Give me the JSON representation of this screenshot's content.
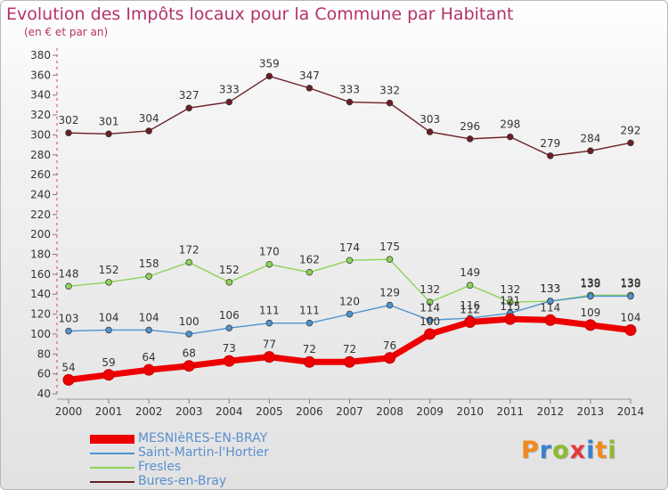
{
  "title": "Evolution des Impôts locaux pour la Commune par Habitant",
  "subtitle": "(en € et par an)",
  "logo": {
    "letters": [
      "P",
      "r",
      "o",
      "x",
      "i",
      "t",
      "i"
    ],
    "colors": [
      "#f08a1c",
      "#3c7fd0",
      "#8cbc2c",
      "#e23a3a",
      "#3c7fd0",
      "#f08a1c",
      "#8cbc2c"
    ]
  },
  "chart_data": {
    "type": "line",
    "title": "Evolution des Impôts locaux pour la Commune par Habitant",
    "ylabel": "(en € et par an)",
    "x": [
      "2000",
      "2001",
      "2002",
      "2003",
      "2004",
      "2005",
      "2006",
      "2007",
      "2008",
      "2009",
      "2010",
      "2011",
      "2012",
      "2013",
      "2014"
    ],
    "ylim": [
      40,
      380
    ],
    "yticks": [
      40,
      60,
      80,
      100,
      120,
      140,
      160,
      180,
      200,
      220,
      240,
      260,
      280,
      300,
      320,
      340,
      360,
      380
    ],
    "grid": false,
    "legend_position": "bottom-left",
    "series": [
      {
        "name": "Bures-en-Bray",
        "color": "#6b1f25",
        "values": [
          302,
          301,
          304,
          327,
          333,
          359,
          347,
          333,
          332,
          303,
          296,
          298,
          279,
          284,
          292
        ],
        "labels": [
          "302",
          "301",
          "304",
          "327",
          "333",
          "359",
          "347",
          "333",
          "332",
          "303",
          "296",
          "298",
          "279",
          "284",
          "292"
        ]
      },
      {
        "name": "Fresles",
        "color": "#8ed35a",
        "values": [
          148,
          152,
          158,
          172,
          152,
          170,
          162,
          174,
          175,
          132,
          149,
          132,
          133,
          139,
          139
        ],
        "labels": [
          "148",
          "152",
          "158",
          "172",
          "152",
          "170",
          "162",
          "174",
          "175",
          "132",
          "149",
          "132",
          "133",
          "139",
          "139"
        ]
      },
      {
        "name": "Saint-Martin-l'Hortier",
        "color": "#4f94cf",
        "values": [
          103,
          104,
          104,
          100,
          106,
          111,
          111,
          120,
          129,
          114,
          116,
          121,
          133,
          138,
          138
        ],
        "labels": [
          "103",
          "104",
          "104",
          "100",
          "106",
          "111",
          "111",
          "120",
          "129",
          "114",
          "116",
          "121",
          "133",
          "138",
          "138"
        ]
      },
      {
        "name": "MESNIèRES-EN-BRAY",
        "color": "#ee0000",
        "values": [
          54,
          59,
          64,
          68,
          73,
          77,
          72,
          72,
          76,
          100,
          112,
          115,
          114,
          109,
          104
        ],
        "labels": [
          "54",
          "59",
          "64",
          "68",
          "73",
          "77",
          "72",
          "72",
          "76",
          "100",
          "112",
          "115",
          "114",
          "109",
          "104"
        ]
      }
    ],
    "legend": [
      {
        "label": "MESNIèRES-EN-BRAY",
        "color": "#ee0000"
      },
      {
        "label": "Saint-Martin-l'Hortier",
        "color": "#4f94cf"
      },
      {
        "label": "Fresles",
        "color": "#8ed35a"
      },
      {
        "label": "Bures-en-Bray",
        "color": "#6b1f25"
      }
    ]
  }
}
